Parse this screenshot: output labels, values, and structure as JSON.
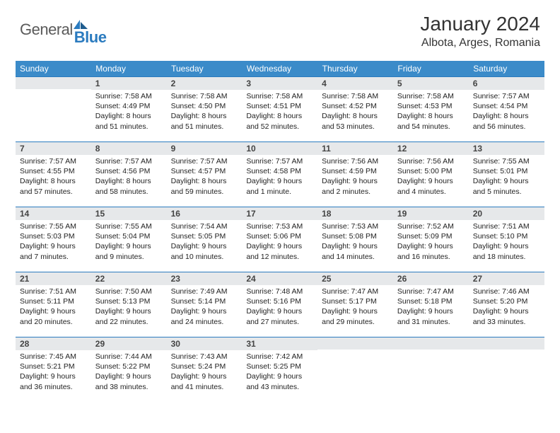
{
  "logo": {
    "general": "General",
    "blue": "Blue"
  },
  "title": "January 2024",
  "location": "Albota, Arges, Romania",
  "colors": {
    "header_bg": "#3b8bc9",
    "header_text": "#ffffff",
    "daynum_bg": "#e6e8ea",
    "accent_line": "#2b7bbf",
    "text": "#222222",
    "logo_gray": "#5a5a5a",
    "logo_blue": "#2b7bbf"
  },
  "weekdays": [
    "Sunday",
    "Monday",
    "Tuesday",
    "Wednesday",
    "Thursday",
    "Friday",
    "Saturday"
  ],
  "weeks": [
    [
      null,
      {
        "n": "1",
        "sr": "Sunrise: 7:58 AM",
        "ss": "Sunset: 4:49 PM",
        "dl1": "Daylight: 8 hours",
        "dl2": "and 51 minutes."
      },
      {
        "n": "2",
        "sr": "Sunrise: 7:58 AM",
        "ss": "Sunset: 4:50 PM",
        "dl1": "Daylight: 8 hours",
        "dl2": "and 51 minutes."
      },
      {
        "n": "3",
        "sr": "Sunrise: 7:58 AM",
        "ss": "Sunset: 4:51 PM",
        "dl1": "Daylight: 8 hours",
        "dl2": "and 52 minutes."
      },
      {
        "n": "4",
        "sr": "Sunrise: 7:58 AM",
        "ss": "Sunset: 4:52 PM",
        "dl1": "Daylight: 8 hours",
        "dl2": "and 53 minutes."
      },
      {
        "n": "5",
        "sr": "Sunrise: 7:58 AM",
        "ss": "Sunset: 4:53 PM",
        "dl1": "Daylight: 8 hours",
        "dl2": "and 54 minutes."
      },
      {
        "n": "6",
        "sr": "Sunrise: 7:57 AM",
        "ss": "Sunset: 4:54 PM",
        "dl1": "Daylight: 8 hours",
        "dl2": "and 56 minutes."
      }
    ],
    [
      {
        "n": "7",
        "sr": "Sunrise: 7:57 AM",
        "ss": "Sunset: 4:55 PM",
        "dl1": "Daylight: 8 hours",
        "dl2": "and 57 minutes."
      },
      {
        "n": "8",
        "sr": "Sunrise: 7:57 AM",
        "ss": "Sunset: 4:56 PM",
        "dl1": "Daylight: 8 hours",
        "dl2": "and 58 minutes."
      },
      {
        "n": "9",
        "sr": "Sunrise: 7:57 AM",
        "ss": "Sunset: 4:57 PM",
        "dl1": "Daylight: 8 hours",
        "dl2": "and 59 minutes."
      },
      {
        "n": "10",
        "sr": "Sunrise: 7:57 AM",
        "ss": "Sunset: 4:58 PM",
        "dl1": "Daylight: 9 hours",
        "dl2": "and 1 minute."
      },
      {
        "n": "11",
        "sr": "Sunrise: 7:56 AM",
        "ss": "Sunset: 4:59 PM",
        "dl1": "Daylight: 9 hours",
        "dl2": "and 2 minutes."
      },
      {
        "n": "12",
        "sr": "Sunrise: 7:56 AM",
        "ss": "Sunset: 5:00 PM",
        "dl1": "Daylight: 9 hours",
        "dl2": "and 4 minutes."
      },
      {
        "n": "13",
        "sr": "Sunrise: 7:55 AM",
        "ss": "Sunset: 5:01 PM",
        "dl1": "Daylight: 9 hours",
        "dl2": "and 5 minutes."
      }
    ],
    [
      {
        "n": "14",
        "sr": "Sunrise: 7:55 AM",
        "ss": "Sunset: 5:03 PM",
        "dl1": "Daylight: 9 hours",
        "dl2": "and 7 minutes."
      },
      {
        "n": "15",
        "sr": "Sunrise: 7:55 AM",
        "ss": "Sunset: 5:04 PM",
        "dl1": "Daylight: 9 hours",
        "dl2": "and 9 minutes."
      },
      {
        "n": "16",
        "sr": "Sunrise: 7:54 AM",
        "ss": "Sunset: 5:05 PM",
        "dl1": "Daylight: 9 hours",
        "dl2": "and 10 minutes."
      },
      {
        "n": "17",
        "sr": "Sunrise: 7:53 AM",
        "ss": "Sunset: 5:06 PM",
        "dl1": "Daylight: 9 hours",
        "dl2": "and 12 minutes."
      },
      {
        "n": "18",
        "sr": "Sunrise: 7:53 AM",
        "ss": "Sunset: 5:08 PM",
        "dl1": "Daylight: 9 hours",
        "dl2": "and 14 minutes."
      },
      {
        "n": "19",
        "sr": "Sunrise: 7:52 AM",
        "ss": "Sunset: 5:09 PM",
        "dl1": "Daylight: 9 hours",
        "dl2": "and 16 minutes."
      },
      {
        "n": "20",
        "sr": "Sunrise: 7:51 AM",
        "ss": "Sunset: 5:10 PM",
        "dl1": "Daylight: 9 hours",
        "dl2": "and 18 minutes."
      }
    ],
    [
      {
        "n": "21",
        "sr": "Sunrise: 7:51 AM",
        "ss": "Sunset: 5:11 PM",
        "dl1": "Daylight: 9 hours",
        "dl2": "and 20 minutes."
      },
      {
        "n": "22",
        "sr": "Sunrise: 7:50 AM",
        "ss": "Sunset: 5:13 PM",
        "dl1": "Daylight: 9 hours",
        "dl2": "and 22 minutes."
      },
      {
        "n": "23",
        "sr": "Sunrise: 7:49 AM",
        "ss": "Sunset: 5:14 PM",
        "dl1": "Daylight: 9 hours",
        "dl2": "and 24 minutes."
      },
      {
        "n": "24",
        "sr": "Sunrise: 7:48 AM",
        "ss": "Sunset: 5:16 PM",
        "dl1": "Daylight: 9 hours",
        "dl2": "and 27 minutes."
      },
      {
        "n": "25",
        "sr": "Sunrise: 7:47 AM",
        "ss": "Sunset: 5:17 PM",
        "dl1": "Daylight: 9 hours",
        "dl2": "and 29 minutes."
      },
      {
        "n": "26",
        "sr": "Sunrise: 7:47 AM",
        "ss": "Sunset: 5:18 PM",
        "dl1": "Daylight: 9 hours",
        "dl2": "and 31 minutes."
      },
      {
        "n": "27",
        "sr": "Sunrise: 7:46 AM",
        "ss": "Sunset: 5:20 PM",
        "dl1": "Daylight: 9 hours",
        "dl2": "and 33 minutes."
      }
    ],
    [
      {
        "n": "28",
        "sr": "Sunrise: 7:45 AM",
        "ss": "Sunset: 5:21 PM",
        "dl1": "Daylight: 9 hours",
        "dl2": "and 36 minutes."
      },
      {
        "n": "29",
        "sr": "Sunrise: 7:44 AM",
        "ss": "Sunset: 5:22 PM",
        "dl1": "Daylight: 9 hours",
        "dl2": "and 38 minutes."
      },
      {
        "n": "30",
        "sr": "Sunrise: 7:43 AM",
        "ss": "Sunset: 5:24 PM",
        "dl1": "Daylight: 9 hours",
        "dl2": "and 41 minutes."
      },
      {
        "n": "31",
        "sr": "Sunrise: 7:42 AM",
        "ss": "Sunset: 5:25 PM",
        "dl1": "Daylight: 9 hours",
        "dl2": "and 43 minutes."
      },
      null,
      null,
      null
    ]
  ]
}
